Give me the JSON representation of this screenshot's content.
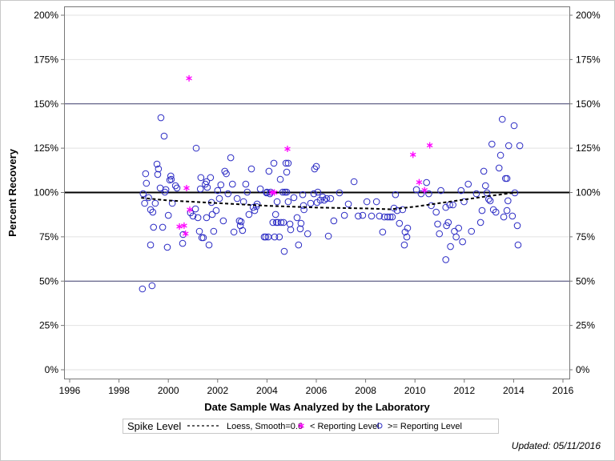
{
  "chart_data": {
    "type": "scatter",
    "title": "",
    "xlabel": "Date Sample Was Analyzed by the Laboratory",
    "ylabel": "Percent Recovery",
    "xlim": [
      1996,
      2016
    ],
    "ylim": [
      0,
      200
    ],
    "x_ticks": [
      "1996",
      "1998",
      "2000",
      "2002",
      "2004",
      "2006",
      "2008",
      "2010",
      "2012",
      "2014",
      "2016"
    ],
    "y_ticks": [
      "0%",
      "25%",
      "50%",
      "75%",
      "100%",
      "125%",
      "150%",
      "175%",
      "200%"
    ],
    "reference_lines": {
      "spike_level": 100,
      "dark_lines": [
        50,
        150
      ]
    },
    "legend": {
      "placement": "bottom",
      "items": [
        "Spike Level",
        "Loess, Smooth=0.6",
        "< Reporting Level",
        ">= Reporting Level"
      ]
    },
    "footnote": "Updated: 05/11/2016",
    "colors": {
      "circle": "#2b2bc4",
      "star": "#ff00ff",
      "loess": "#000000"
    },
    "loess": [
      [
        1998.9,
        97
      ],
      [
        2000,
        95.5
      ],
      [
        2002,
        94
      ],
      [
        2004,
        92.5
      ],
      [
        2006,
        91.5
      ],
      [
        2008,
        91
      ],
      [
        2009,
        90.5
      ],
      [
        2010,
        92
      ],
      [
        2011,
        94
      ],
      [
        2012,
        96
      ],
      [
        2013,
        98
      ],
      [
        2014.1,
        100
      ]
    ],
    "below_reporting_level": [
      [
        2000.84,
        164.4
      ],
      [
        2000.74,
        102.5
      ],
      [
        2000.87,
        90.3
      ],
      [
        2000.64,
        81.3
      ],
      [
        2000.45,
        80.8
      ],
      [
        2000.7,
        76.8
      ],
      [
        2004.2,
        100
      ],
      [
        2004.3,
        100
      ],
      [
        2004.83,
        124.6
      ],
      [
        2009.92,
        121.3
      ],
      [
        2010.6,
        126.6
      ],
      [
        2010.17,
        105.8
      ],
      [
        2010.39,
        101.3
      ]
    ],
    "at_or_above_reporting_level": [
      [
        1998.95,
        45.6
      ],
      [
        1999.34,
        47.4
      ],
      [
        1998.98,
        99.3
      ],
      [
        1999.08,
        110.6
      ],
      [
        1999.11,
        105.2
      ],
      [
        1999.04,
        93.9
      ],
      [
        1999.2,
        97.1
      ],
      [
        1999.28,
        90.3
      ],
      [
        1999.37,
        88.9
      ],
      [
        1999.28,
        70.4
      ],
      [
        1999.4,
        80.4
      ],
      [
        1999.47,
        93.9
      ],
      [
        1999.54,
        116
      ],
      [
        1999.57,
        110.2
      ],
      [
        1999.6,
        113.3
      ],
      [
        1999.67,
        102.5
      ],
      [
        1999.7,
        142.2
      ],
      [
        1999.77,
        80.4
      ],
      [
        1999.83,
        131.8
      ],
      [
        1999.86,
        100.2
      ],
      [
        1999.9,
        101.6
      ],
      [
        1999.96,
        69.1
      ],
      [
        2000,
        87.1
      ],
      [
        2000.06,
        107
      ],
      [
        2000.1,
        109.3
      ],
      [
        2000.12,
        107.4
      ],
      [
        2000.16,
        93.9
      ],
      [
        2000.29,
        103.8
      ],
      [
        2000.35,
        102.5
      ],
      [
        2000.58,
        71.3
      ],
      [
        2000.6,
        76.3
      ],
      [
        2000.9,
        88.5
      ],
      [
        2001,
        86.7
      ],
      [
        2001.1,
        90.7
      ],
      [
        2001.13,
        125
      ],
      [
        2001.2,
        85.8
      ],
      [
        2001.26,
        78.1
      ],
      [
        2001.3,
        102
      ],
      [
        2001.32,
        108.4
      ],
      [
        2001.36,
        74.5
      ],
      [
        2001.42,
        74.5
      ],
      [
        2001.5,
        104.7
      ],
      [
        2001.55,
        106.1
      ],
      [
        2001.58,
        102.9
      ],
      [
        2001.55,
        85.8
      ],
      [
        2001.65,
        70.4
      ],
      [
        2001.71,
        108.4
      ],
      [
        2001.75,
        94.4
      ],
      [
        2001.78,
        87.6
      ],
      [
        2001.84,
        78.1
      ],
      [
        2001.94,
        89.8
      ],
      [
        2002,
        101.1
      ],
      [
        2002.07,
        96.6
      ],
      [
        2002.13,
        104.3
      ],
      [
        2002.23,
        84
      ],
      [
        2002.29,
        112
      ],
      [
        2002.35,
        110.6
      ],
      [
        2002.42,
        99.3
      ],
      [
        2002.53,
        119.6
      ],
      [
        2002.6,
        104.7
      ],
      [
        2002.66,
        77.7
      ],
      [
        2002.79,
        96.6
      ],
      [
        2002.88,
        84
      ],
      [
        2002.92,
        81.3
      ],
      [
        2002.95,
        83.5
      ],
      [
        2003.01,
        78.6
      ],
      [
        2003.05,
        94.8
      ],
      [
        2003.14,
        104.7
      ],
      [
        2003.2,
        100.2
      ],
      [
        2003.27,
        87.6
      ],
      [
        2003.37,
        113.3
      ],
      [
        2003.44,
        91.6
      ],
      [
        2003.5,
        89.8
      ],
      [
        2003.57,
        92.1
      ],
      [
        2003.6,
        93.5
      ],
      [
        2003.73,
        102
      ],
      [
        2003.89,
        74.9
      ],
      [
        2003.95,
        74.9
      ],
      [
        2003.98,
        99.8
      ],
      [
        2004,
        100.2
      ],
      [
        2004.05,
        74.9
      ],
      [
        2004.08,
        112
      ],
      [
        2004.12,
        99.3
      ],
      [
        2004.15,
        100.2
      ],
      [
        2004.24,
        83.1
      ],
      [
        2004.28,
        116.5
      ],
      [
        2004.31,
        74.9
      ],
      [
        2004.35,
        87.6
      ],
      [
        2004.38,
        83.1
      ],
      [
        2004.41,
        94.8
      ],
      [
        2004.44,
        83.1
      ],
      [
        2004.5,
        74.9
      ],
      [
        2004.54,
        107.4
      ],
      [
        2004.57,
        83.1
      ],
      [
        2004.64,
        100.2
      ],
      [
        2004.67,
        83.1
      ],
      [
        2004.7,
        66.8
      ],
      [
        2004.73,
        100.2
      ],
      [
        2004.77,
        116.5
      ],
      [
        2004.8,
        111.5
      ],
      [
        2004.8,
        100.2
      ],
      [
        2004.86,
        116.5
      ],
      [
        2004.93,
        82.2
      ],
      [
        2004.86,
        94.8
      ],
      [
        2004.96,
        79
      ],
      [
        2005.09,
        97.1
      ],
      [
        2005.22,
        85.8
      ],
      [
        2005.28,
        70.4
      ],
      [
        2005.35,
        79.5
      ],
      [
        2005.38,
        82.6
      ],
      [
        2005.45,
        98.8
      ],
      [
        2005.48,
        92.6
      ],
      [
        2005.5,
        90.3
      ],
      [
        2005.65,
        76.7
      ],
      [
        2005.77,
        93.9
      ],
      [
        2005.9,
        99.3
      ],
      [
        2005.93,
        113.3
      ],
      [
        2006,
        114.7
      ],
      [
        2006.03,
        94.4
      ],
      [
        2006.06,
        100.2
      ],
      [
        2006.16,
        95.7
      ],
      [
        2006.26,
        97.5
      ],
      [
        2006.32,
        95.7
      ],
      [
        2006.42,
        96.6
      ],
      [
        2006.49,
        75.4
      ],
      [
        2006.58,
        96.6
      ],
      [
        2006.71,
        84
      ],
      [
        2006.94,
        99.8
      ],
      [
        2007.14,
        87.1
      ],
      [
        2007.3,
        93.5
      ],
      [
        2007.53,
        106.1
      ],
      [
        2007.7,
        86.7
      ],
      [
        2007.88,
        87.1
      ],
      [
        2008.05,
        94.8
      ],
      [
        2008.24,
        86.7
      ],
      [
        2008.44,
        94.8
      ],
      [
        2008.56,
        86.7
      ],
      [
        2008.69,
        77.7
      ],
      [
        2008.76,
        86.2
      ],
      [
        2008.89,
        86.2
      ],
      [
        2008.99,
        86.2
      ],
      [
        2009.08,
        86.2
      ],
      [
        2009.15,
        91.2
      ],
      [
        2009.21,
        98.8
      ],
      [
        2009.28,
        89.8
      ],
      [
        2009.37,
        82.6
      ],
      [
        2009.5,
        90.3
      ],
      [
        2009.57,
        70.4
      ],
      [
        2009.6,
        77.7
      ],
      [
        2009.7,
        79.9
      ],
      [
        2009.67,
        74.9
      ],
      [
        2010.06,
        101.6
      ],
      [
        2010.25,
        99.3
      ],
      [
        2010.47,
        105.6
      ],
      [
        2010.56,
        99.3
      ],
      [
        2010.66,
        92.6
      ],
      [
        2010.86,
        88.9
      ],
      [
        2010.92,
        82.2
      ],
      [
        2010.99,
        76.7
      ],
      [
        2011.05,
        101.1
      ],
      [
        2011.25,
        91.6
      ],
      [
        2011.25,
        62.1
      ],
      [
        2011.28,
        81.3
      ],
      [
        2011.35,
        83.1
      ],
      [
        2011.44,
        69.5
      ],
      [
        2011.41,
        93
      ],
      [
        2011.54,
        93
      ],
      [
        2011.6,
        78.1
      ],
      [
        2011.67,
        74.9
      ],
      [
        2011.77,
        79.9
      ],
      [
        2011.87,
        101.1
      ],
      [
        2011.93,
        72.2
      ],
      [
        2011.99,
        94.8
      ],
      [
        2012.16,
        104.7
      ],
      [
        2012.29,
        78.1
      ],
      [
        2012.49,
        99.3
      ],
      [
        2012.66,
        83.1
      ],
      [
        2012.72,
        89.8
      ],
      [
        2012.79,
        112
      ],
      [
        2012.86,
        103.8
      ],
      [
        2012.92,
        99.8
      ],
      [
        2012.99,
        96.2
      ],
      [
        2013.05,
        95.3
      ],
      [
        2013.12,
        127.3
      ],
      [
        2013.18,
        90.3
      ],
      [
        2013.28,
        88.9
      ],
      [
        2013.41,
        113.8
      ],
      [
        2013.47,
        121
      ],
      [
        2013.54,
        141.3
      ],
      [
        2013.6,
        86.2
      ],
      [
        2013.67,
        107.9
      ],
      [
        2013.73,
        107.9
      ],
      [
        2013.73,
        89.8
      ],
      [
        2013.77,
        95.3
      ],
      [
        2013.8,
        126.4
      ],
      [
        2013.95,
        86.7
      ],
      [
        2014.05,
        99.8
      ],
      [
        2014.02,
        137.7
      ],
      [
        2014.18,
        70.4
      ],
      [
        2014.15,
        81.3
      ],
      [
        2014.25,
        126.4
      ]
    ]
  }
}
